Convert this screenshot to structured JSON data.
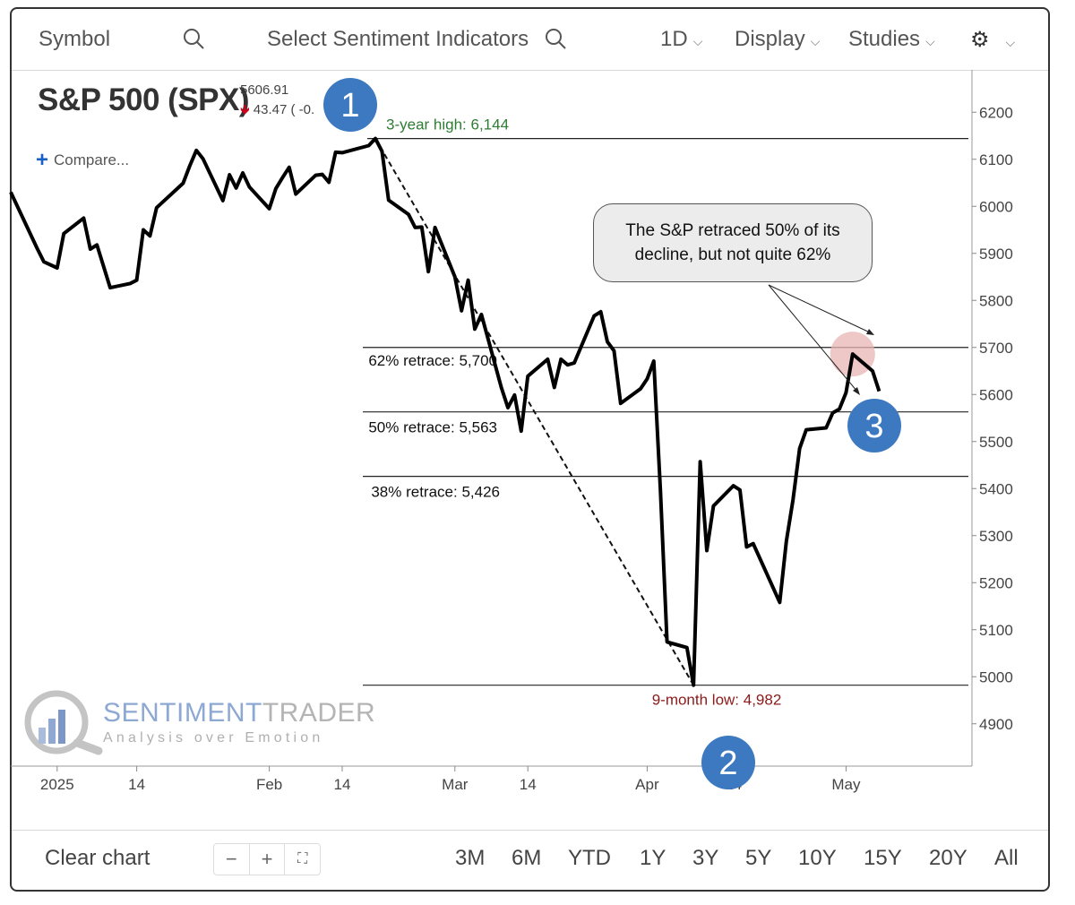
{
  "topbar": {
    "symbol_label": "Symbol",
    "sentiment_label": "Select Sentiment Indicators",
    "interval": "1D",
    "display": "Display",
    "studies": "Studies"
  },
  "header": {
    "title": "S&P 500 (SPX)",
    "price": "5606.91",
    "change": "43.47 ( -0.",
    "compare": "Compare..."
  },
  "logo": {
    "name_a": "SENTIMENT",
    "name_b": "TRADER",
    "tagline": "Analysis over Emotion"
  },
  "callout": {
    "line1": "The S&P retraced 50% of its",
    "line2": "decline, but not quite 62%"
  },
  "markers": [
    "1",
    "2",
    "3"
  ],
  "bottombar": {
    "clear": "Clear chart",
    "zoom": [
      "−",
      "+",
      "⛶"
    ],
    "ranges": [
      "3M",
      "6M",
      "YTD",
      "1Y",
      "3Y",
      "5Y",
      "10Y",
      "15Y",
      "20Y",
      "All"
    ]
  },
  "colors": {
    "high_label": "#2e7d32",
    "low_label": "#8b1a1a",
    "marker": "#3c79c0",
    "highlight": "#e8b4b4",
    "down_arrow": "#d0021b"
  },
  "chart_data": {
    "type": "line",
    "series": [
      {
        "values": [
          [
            "2024-12-26",
            6030
          ],
          [
            "2024-12-30",
            5910
          ],
          [
            "2024-12-31",
            5882
          ],
          [
            "2025-01-02",
            5869
          ],
          [
            "2025-01-03",
            5942
          ],
          [
            "2025-01-06",
            5975
          ],
          [
            "2025-01-07",
            5909
          ],
          [
            "2025-01-08",
            5918
          ],
          [
            "2025-01-10",
            5827
          ],
          [
            "2025-01-13",
            5836
          ],
          [
            "2025-01-14",
            5843
          ],
          [
            "2025-01-15",
            5950
          ],
          [
            "2025-01-16",
            5937
          ],
          [
            "2025-01-17",
            5997
          ],
          [
            "2025-01-21",
            6049
          ],
          [
            "2025-01-22",
            6086
          ],
          [
            "2025-01-23",
            6119
          ],
          [
            "2025-01-24",
            6101
          ],
          [
            "2025-01-27",
            6012
          ],
          [
            "2025-01-28",
            6067
          ],
          [
            "2025-01-29",
            6039
          ],
          [
            "2025-01-30",
            6071
          ],
          [
            "2025-01-31",
            6041
          ],
          [
            "2025-02-03",
            5995
          ],
          [
            "2025-02-04",
            6038
          ],
          [
            "2025-02-05",
            6061
          ],
          [
            "2025-02-06",
            6083
          ],
          [
            "2025-02-07",
            6026
          ],
          [
            "2025-02-10",
            6066
          ],
          [
            "2025-02-11",
            6068
          ],
          [
            "2025-02-12",
            6051
          ],
          [
            "2025-02-13",
            6115
          ],
          [
            "2025-02-14",
            6114
          ],
          [
            "2025-02-18",
            6129
          ],
          [
            "2025-02-19",
            6144
          ],
          [
            "2025-02-20",
            6117
          ],
          [
            "2025-02-21",
            6013
          ],
          [
            "2025-02-24",
            5983
          ],
          [
            "2025-02-25",
            5955
          ],
          [
            "2025-02-26",
            5956
          ],
          [
            "2025-02-27",
            5861
          ],
          [
            "2025-02-28",
            5955
          ],
          [
            "2025-03-03",
            5850
          ],
          [
            "2025-03-04",
            5778
          ],
          [
            "2025-03-05",
            5843
          ],
          [
            "2025-03-06",
            5739
          ],
          [
            "2025-03-07",
            5770
          ],
          [
            "2025-03-10",
            5615
          ],
          [
            "2025-03-11",
            5572
          ],
          [
            "2025-03-12",
            5599
          ],
          [
            "2025-03-13",
            5522
          ],
          [
            "2025-03-14",
            5639
          ],
          [
            "2025-03-17",
            5675
          ],
          [
            "2025-03-18",
            5615
          ],
          [
            "2025-03-19",
            5675
          ],
          [
            "2025-03-20",
            5663
          ],
          [
            "2025-03-21",
            5667
          ],
          [
            "2025-03-24",
            5767
          ],
          [
            "2025-03-25",
            5776
          ],
          [
            "2025-03-26",
            5712
          ],
          [
            "2025-03-27",
            5693
          ],
          [
            "2025-03-28",
            5581
          ],
          [
            "2025-03-31",
            5612
          ],
          [
            "2025-04-01",
            5633
          ],
          [
            "2025-04-02",
            5671
          ],
          [
            "2025-04-03",
            5397
          ],
          [
            "2025-04-04",
            5074
          ],
          [
            "2025-04-07",
            5062
          ],
          [
            "2025-04-08",
            4982
          ],
          [
            "2025-04-09",
            5457
          ],
          [
            "2025-04-10",
            5268
          ],
          [
            "2025-04-11",
            5363
          ],
          [
            "2025-04-14",
            5406
          ],
          [
            "2025-04-15",
            5397
          ],
          [
            "2025-04-16",
            5276
          ],
          [
            "2025-04-17",
            5283
          ],
          [
            "2025-04-21",
            5158
          ],
          [
            "2025-04-22",
            5288
          ],
          [
            "2025-04-23",
            5376
          ],
          [
            "2025-04-24",
            5485
          ],
          [
            "2025-04-25",
            5525
          ],
          [
            "2025-04-28",
            5529
          ],
          [
            "2025-04-29",
            5561
          ],
          [
            "2025-04-30",
            5569
          ],
          [
            "2025-05-01",
            5604
          ],
          [
            "2025-05-02",
            5686
          ],
          [
            "2025-05-05",
            5650
          ],
          [
            "2025-05-06",
            5607
          ]
        ]
      }
    ],
    "levels": [
      {
        "label": "3-year high: 6,144",
        "value": 6144
      },
      {
        "label": "62% retrace: 5,700",
        "value": 5700
      },
      {
        "label": "50% retrace: 5,563",
        "value": 5563
      },
      {
        "label": "38% retrace: 5,426",
        "value": 5426
      },
      {
        "label": "9-month low: 4,982",
        "value": 4982
      }
    ],
    "trendline": [
      [
        "2025-02-19",
        6144
      ],
      [
        "2025-04-08",
        4982
      ]
    ],
    "y_ticks": [
      4900,
      5000,
      5100,
      5200,
      5300,
      5400,
      5500,
      5600,
      5700,
      5800,
      5900,
      6000,
      6100,
      6200
    ],
    "ylim": [
      4810,
      6290
    ],
    "x_ticks": [
      {
        "label": "2025",
        "date": "2025-01-02"
      },
      {
        "label": "14",
        "date": "2025-01-14"
      },
      {
        "label": "Feb",
        "date": "2025-02-03"
      },
      {
        "label": "14",
        "date": "2025-02-14"
      },
      {
        "label": "Mar",
        "date": "2025-03-03"
      },
      {
        "label": "14",
        "date": "2025-03-14"
      },
      {
        "label": "Apr",
        "date": "2025-04-01"
      },
      {
        "label": "14",
        "date": "2025-04-14"
      },
      {
        "label": "May",
        "date": "2025-05-01"
      }
    ],
    "xlim": [
      "2024-12-26",
      "2025-05-20"
    ],
    "highlight_point": [
      "2025-05-02",
      5686
    ],
    "grid": false
  }
}
